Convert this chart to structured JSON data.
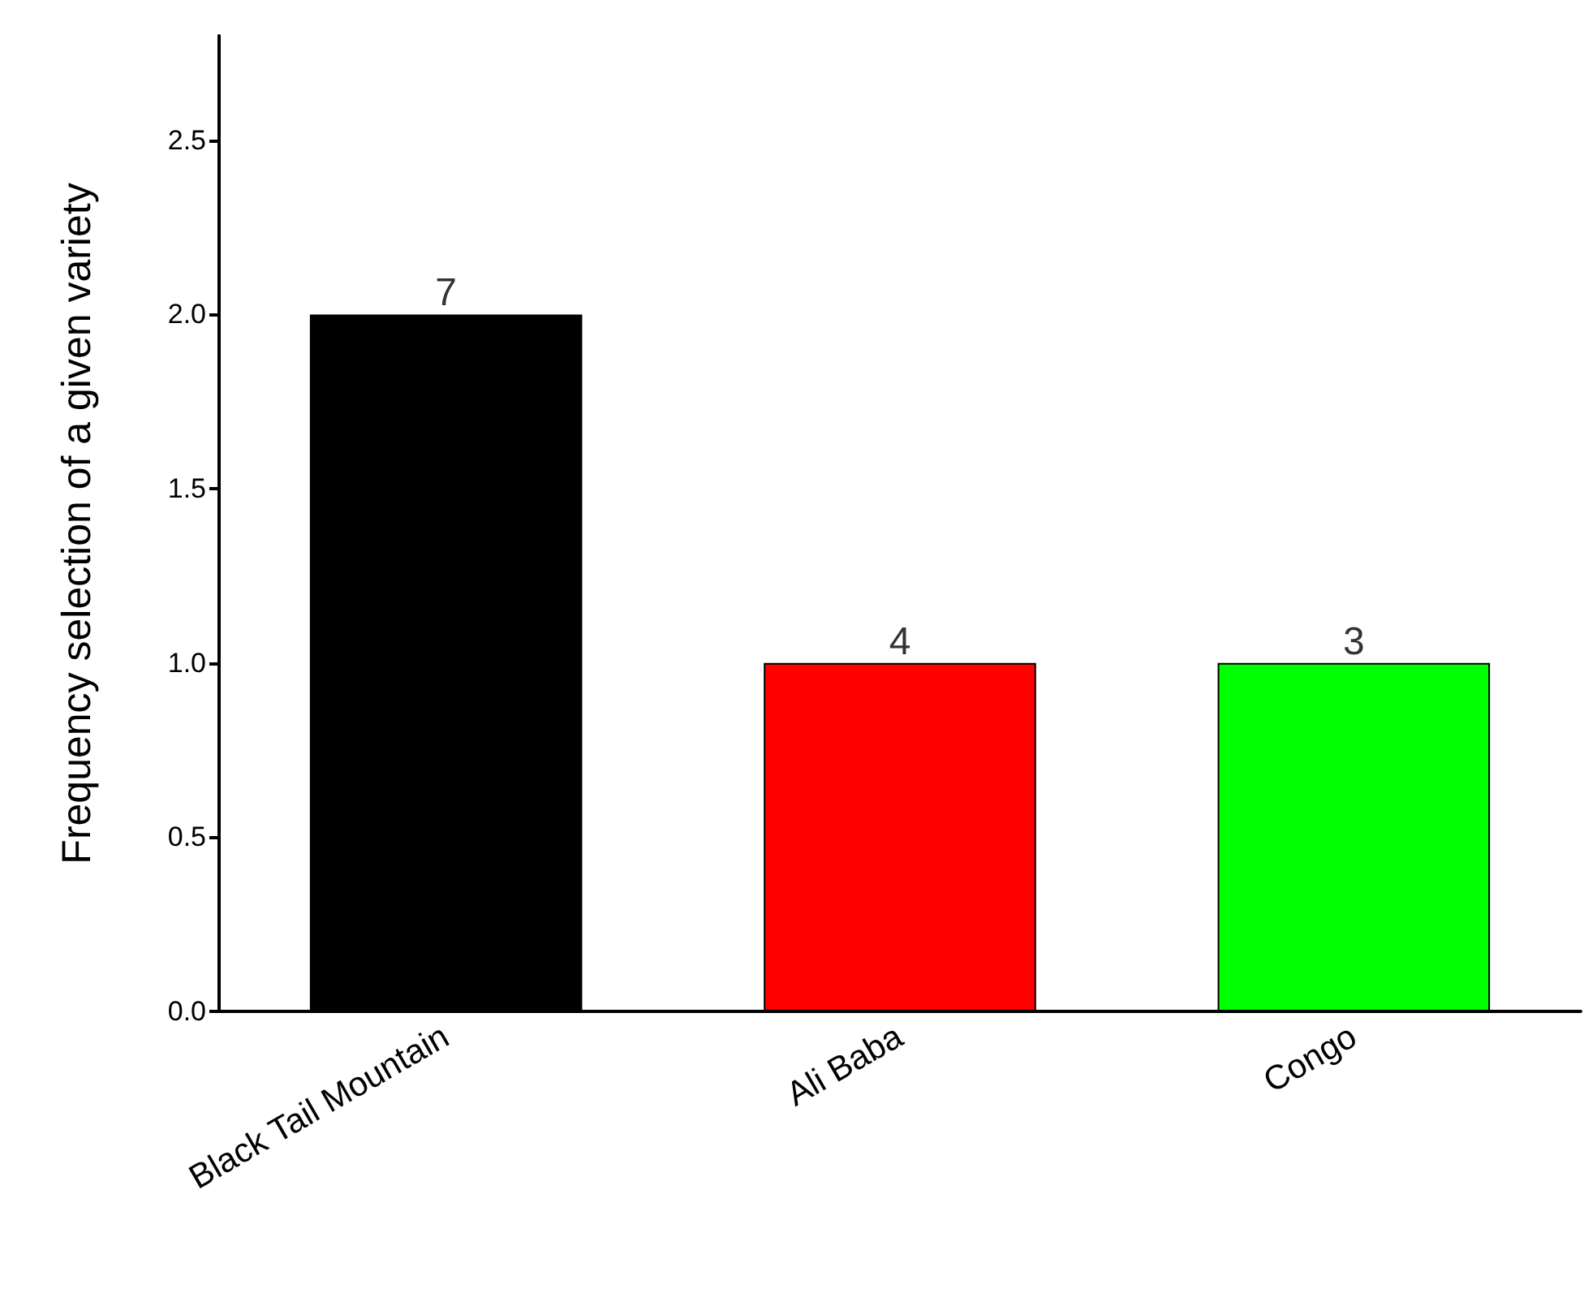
{
  "chart_data": {
    "type": "bar",
    "ylabel": "Frequency selection of a given variety",
    "categories": [
      "Black Tail Mountain",
      "Ali Baba",
      "Congo"
    ],
    "values": [
      2.0,
      1.0,
      1.0
    ],
    "colors": [
      "#000000",
      "#ff0000",
      "#00ff00"
    ],
    "annotations": [
      {
        "text": "7",
        "x": "Black Tail Mountain",
        "y": 2.0
      },
      {
        "text": "4",
        "x": "Ali Baba",
        "y": 1.0
      },
      {
        "text": "3",
        "x": "Congo",
        "y": 1.0
      }
    ],
    "ylim": [
      0,
      2.8
    ],
    "yticks": [
      {
        "value": 0,
        "label": "0.0"
      },
      {
        "value": 0.5,
        "label": "0.5"
      },
      {
        "value": 1,
        "label": "1.0"
      },
      {
        "value": 1.5,
        "label": "1.5"
      },
      {
        "value": 2,
        "label": "2.0"
      },
      {
        "value": 2.5,
        "label": "2.5"
      }
    ],
    "grid": false
  }
}
